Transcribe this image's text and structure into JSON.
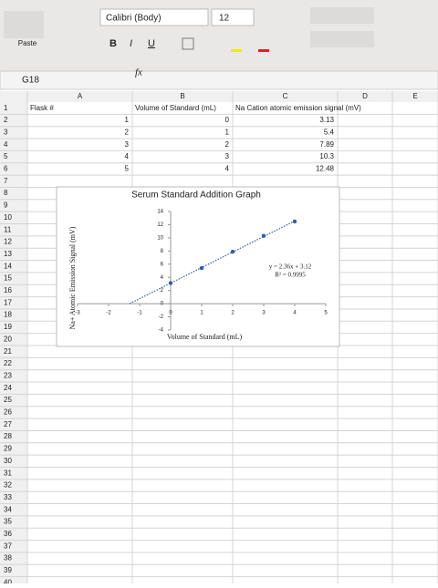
{
  "toolbar": {
    "paste": "Paste",
    "font_name": "Calibri (Body)",
    "font_size": "12",
    "bold": "B",
    "italic": "I",
    "underline": "U",
    "name_box": "G18",
    "fx": "fx"
  },
  "sheet": {
    "columns": [
      "A",
      "B",
      "C",
      "D",
      "E"
    ],
    "row_numbers": [
      1,
      2,
      3,
      4,
      5,
      6,
      7,
      8,
      9,
      10,
      11,
      12,
      13,
      14,
      15,
      16,
      17,
      18,
      19,
      20,
      21,
      22,
      23,
      24,
      25,
      26,
      27,
      28,
      29,
      30,
      31,
      32,
      33,
      34,
      35,
      36,
      37,
      38,
      39,
      40
    ],
    "cells": [
      [
        "Flask #",
        "Volume of Standard (mL)",
        "Na Cation atomic emission signal (mV)"
      ],
      [
        1,
        0,
        3.13
      ],
      [
        2,
        1,
        5.4
      ],
      [
        3,
        2,
        7.89
      ],
      [
        4,
        3,
        10.3
      ],
      [
        5,
        4,
        12.48
      ]
    ]
  },
  "chart_data": {
    "type": "scatter",
    "title": "Serum Standard Addition Graph",
    "x_label": "Volume of Standard (mL)",
    "y_label": "Na+ Atomic Emission Signal (mV)",
    "x": [
      0,
      1,
      2,
      3,
      4
    ],
    "series": [
      {
        "color": "#2f5ea8",
        "values": [
          3.13,
          5.4,
          7.89,
          10.3,
          12.48
        ]
      }
    ],
    "xlim": [
      -3,
      5
    ],
    "ylim": [
      -4,
      14
    ],
    "xticks": [
      -3,
      -2,
      -1,
      0,
      1,
      2,
      3,
      4,
      5
    ],
    "yticks": [
      -4,
      -2,
      0,
      2,
      4,
      6,
      8,
      10,
      12,
      14
    ],
    "trendline": {
      "slope": 2.36,
      "intercept": 3.12,
      "equation": "y = 2.36x + 3.12",
      "r_squared": "R² = 0.9995",
      "color": "#2f5ea8"
    }
  }
}
